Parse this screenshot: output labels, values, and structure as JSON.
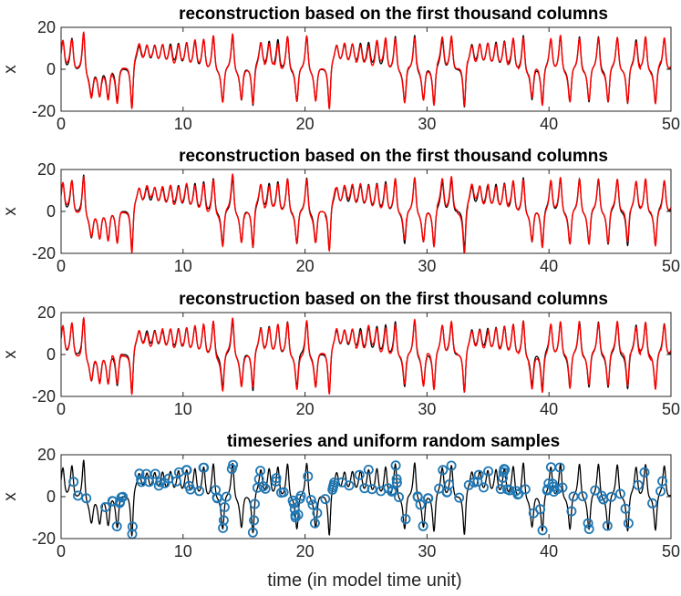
{
  "figure": {
    "xlabel": "time (in model time unit)"
  },
  "colors": {
    "truth": "#000000",
    "reconstruction": "#ff0000",
    "samples": "#1f77b4",
    "axes": "#262626"
  },
  "chart_data": [
    {
      "type": "line",
      "title": "reconstruction based on the first thousand columns",
      "ylabel": "x",
      "xlim": [
        0,
        50
      ],
      "ylim": [
        -20,
        20
      ],
      "xticks": [
        0,
        10,
        20,
        30,
        40,
        50
      ],
      "yticks": [
        -20,
        0,
        20
      ],
      "series": [
        {
          "name": "timeseries",
          "color": "#000000",
          "source": "lorenz-x",
          "seed": 0
        },
        {
          "name": "reconstruction",
          "color": "#ff0000",
          "source": "lorenz-x-reconstruction",
          "seed": 11
        }
      ]
    },
    {
      "type": "line",
      "title": "reconstruction based on the first thousand columns",
      "ylabel": "x",
      "xlim": [
        0,
        50
      ],
      "ylim": [
        -20,
        20
      ],
      "xticks": [
        0,
        10,
        20,
        30,
        40,
        50
      ],
      "yticks": [
        -20,
        0,
        20
      ],
      "series": [
        {
          "name": "timeseries",
          "color": "#000000",
          "source": "lorenz-x",
          "seed": 0
        },
        {
          "name": "reconstruction",
          "color": "#ff0000",
          "source": "lorenz-x-reconstruction",
          "seed": 23
        }
      ]
    },
    {
      "type": "line",
      "title": "reconstruction based on the first thousand columns",
      "ylabel": "x",
      "xlim": [
        0,
        50
      ],
      "ylim": [
        -20,
        20
      ],
      "xticks": [
        0,
        10,
        20,
        30,
        40,
        50
      ],
      "yticks": [
        -20,
        0,
        20
      ],
      "series": [
        {
          "name": "timeseries",
          "color": "#000000",
          "source": "lorenz-x",
          "seed": 0
        },
        {
          "name": "reconstruction",
          "color": "#ff0000",
          "source": "lorenz-x-reconstruction",
          "seed": 37
        }
      ]
    },
    {
      "type": "scatter",
      "title": "timeseries and uniform random samples",
      "ylabel": "x",
      "xlim": [
        0,
        50
      ],
      "ylim": [
        -20,
        20
      ],
      "xticks": [
        0,
        10,
        20,
        30,
        40,
        50
      ],
      "yticks": [
        -20,
        0,
        20
      ],
      "series": [
        {
          "name": "timeseries",
          "color": "#000000",
          "source": "lorenz-x",
          "seed": 0
        },
        {
          "name": "uniform random samples",
          "color": "#1f77b4",
          "marker": "circle",
          "count": 150,
          "seed": 5
        }
      ]
    }
  ]
}
